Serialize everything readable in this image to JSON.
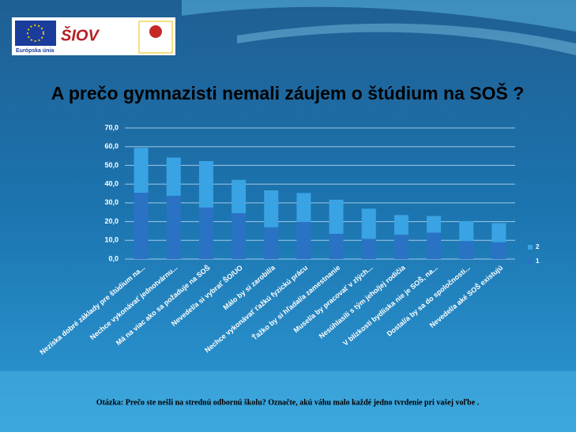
{
  "logo": {
    "eu": "Európska únia",
    "siov": "ŠIOV"
  },
  "chart_data": {
    "type": "stacked_bar",
    "title": "A prečo  gymnazisti nemali záujem o štúdium na SOŠ ?",
    "footnote": "Otázka: Prečo ste nešli na strednú odbornú školu? Označte, akú váhu malo každé jedno tvrdenie pri vašej voľbe .",
    "categories": [
      "Nezíska dobré základy pre štúdium na...",
      "Nechce vykonávať jednotvárnu...",
      "Má na viac ako sa požaduje na SOŠ",
      "Nevedel/a si vybrať ŠO/UO",
      "Málo by si zarobil/a",
      "Nechce vykonávať ťažkú fyzickú prácu",
      "Ťažko by si hľadal/a zamestnanie",
      "Musel/a by pracovať v zlých...",
      "Nesúhlasili s tým jeho/jej rodičia",
      "V blízkosti bydliska nie je SOŠ, na...",
      "Dostal/a by sa do spoločnosti...",
      "Nevedel/a aké SOŠ existujú"
    ],
    "series": [
      {
        "name": "1",
        "color": "#2a72c4",
        "values": [
          35.4,
          33.8,
          27.5,
          24.5,
          17.0,
          19.8,
          13.5,
          10.8,
          13.0,
          14.1,
          9.6,
          9.0
        ]
      },
      {
        "name": "2",
        "color": "#3aa3e3",
        "values": [
          24.0,
          20.4,
          24.8,
          17.8,
          19.7,
          15.5,
          18.2,
          16.1,
          10.5,
          8.9,
          10.6,
          10.2
        ]
      }
    ],
    "ylim": [
      0,
      70
    ],
    "yticks": [
      {
        "value": 0,
        "label": "0,0"
      },
      {
        "value": 10,
        "label": "10,0"
      },
      {
        "value": 20,
        "label": "20,0"
      },
      {
        "value": 30,
        "label": "30,0"
      },
      {
        "value": 40,
        "label": "40,0"
      },
      {
        "value": 50,
        "label": "50,0"
      },
      {
        "value": 60,
        "label": "60,0"
      },
      {
        "value": 70,
        "label": "70,0"
      }
    ],
    "grid": true,
    "legend": "right"
  }
}
